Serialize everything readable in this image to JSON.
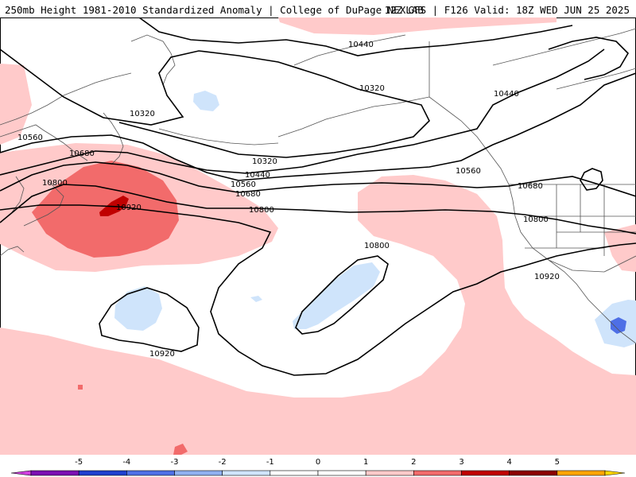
{
  "header": {
    "left_title": "250mb Height 1981-2010 Standardized Anomaly | College of DuPage NEXLAB",
    "right_title": "12Z GFS | F126 Valid: 18Z WED JUN 25 2025"
  },
  "contours": {
    "labels": [
      "10440",
      "10320",
      "10320",
      "10440",
      "10560",
      "10680",
      "10800",
      "10920",
      "10320",
      "10440",
      "10560",
      "10680",
      "10800",
      "10560",
      "10680",
      "10800",
      "10800",
      "10920",
      "10920"
    ]
  },
  "colorbar": {
    "ticks": [
      "-5",
      "-4",
      "-3",
      "-2",
      "-1",
      "0",
      "1",
      "2",
      "3",
      "4",
      "5"
    ],
    "colors": [
      "#7b0fb3",
      "#1f3fcf",
      "#4e6fe6",
      "#8fb0f0",
      "#cfe4fb",
      "#ffffff",
      "#ffffff",
      "#ffcaca",
      "#f26b6b",
      "#c00000",
      "#8b0000",
      "#ffa500"
    ],
    "left_end_color": "#d040e0",
    "right_end_color": "#ffd700"
  },
  "shading": {
    "weak_positive": "#ffcaca",
    "moderate_positive": "#f26b6b",
    "strong_positive": "#c00000",
    "weak_negative": "#cfe4fb",
    "moderate_negative": "#4e6fe6"
  }
}
